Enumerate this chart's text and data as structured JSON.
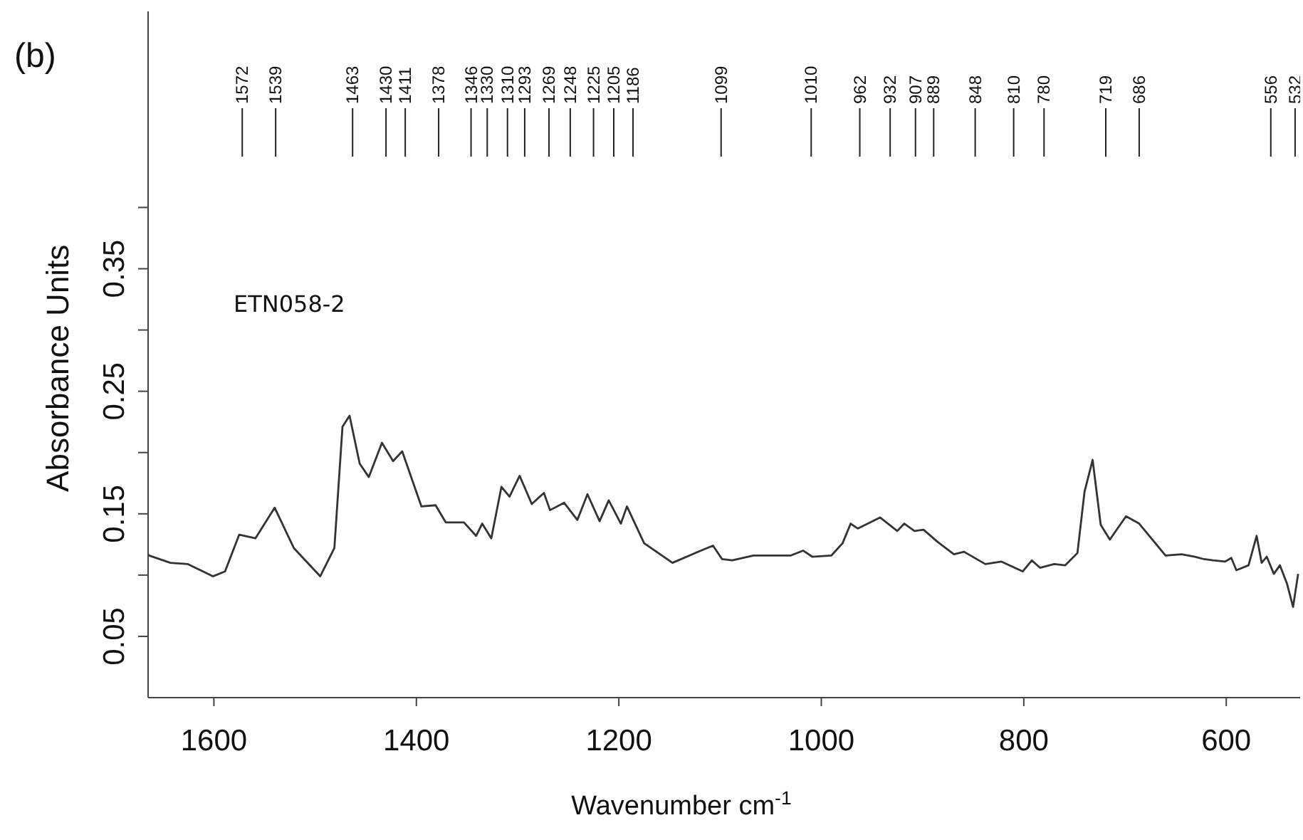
{
  "chart_data": {
    "type": "line",
    "title": "(b)",
    "xlabel": "Wavenumber cm$^{-1}$",
    "ylabel": "Absorbance Units",
    "x": [
      1665,
      1664,
      1643,
      1626,
      1601,
      1589,
      1575,
      1559,
      1540,
      1521,
      1495,
      1481,
      1473,
      1466,
      1456,
      1447,
      1434,
      1423,
      1414,
      1395,
      1381,
      1371,
      1353,
      1341,
      1335,
      1326,
      1316,
      1308,
      1298,
      1286,
      1274,
      1268,
      1254,
      1241,
      1231,
      1219,
      1210,
      1198,
      1192,
      1175,
      1147,
      1119,
      1107,
      1098,
      1088,
      1067,
      1030,
      1018,
      1009,
      990,
      979,
      971,
      964,
      942,
      925,
      918,
      908,
      899,
      885,
      869,
      859,
      838,
      822,
      801,
      792,
      784,
      770,
      759,
      747,
      740,
      732,
      724,
      715,
      699,
      686,
      660,
      644,
      631,
      622,
      613,
      601,
      595,
      590,
      578,
      570,
      565,
      560,
      553,
      547,
      540,
      534,
      529
    ],
    "series": [
      {
        "color": "#333333",
        "values": [
          0.117,
          0.116,
          0.11,
          0.109,
          0.099,
          0.103,
          0.133,
          0.13,
          0.155,
          0.122,
          0.099,
          0.122,
          0.221,
          0.23,
          0.191,
          0.18,
          0.208,
          0.193,
          0.201,
          0.156,
          0.157,
          0.143,
          0.143,
          0.132,
          0.142,
          0.13,
          0.172,
          0.164,
          0.181,
          0.158,
          0.167,
          0.153,
          0.159,
          0.145,
          0.166,
          0.144,
          0.161,
          0.142,
          0.156,
          0.126,
          0.11,
          0.12,
          0.124,
          0.113,
          0.112,
          0.116,
          0.116,
          0.12,
          0.115,
          0.116,
          0.126,
          0.142,
          0.138,
          0.147,
          0.136,
          0.142,
          0.136,
          0.137,
          0.127,
          0.117,
          0.119,
          0.109,
          0.111,
          0.103,
          0.112,
          0.106,
          0.109,
          0.108,
          0.118,
          0.168,
          0.194,
          0.141,
          0.129,
          0.148,
          0.142,
          0.116,
          0.117,
          0.115,
          0.113,
          0.112,
          0.111,
          0.114,
          0.104,
          0.108,
          0.132,
          0.11,
          0.115,
          0.101,
          0.108,
          0.093,
          0.074,
          0.101
        ]
      }
    ],
    "xlim": [
      1665,
      527
    ],
    "xticks": [
      1600,
      1400,
      1200,
      1000,
      800,
      600
    ],
    "ylim": [
      0,
      0.56
    ],
    "yticks": [
      {
        "value": 0.05,
        "label": "0.05"
      },
      {
        "value": 0.1,
        "label": null
      },
      {
        "value": 0.15,
        "label": "0.15"
      },
      {
        "value": 0.2,
        "label": null
      },
      {
        "value": 0.25,
        "label": "0.25"
      },
      {
        "value": 0.3,
        "label": null
      },
      {
        "value": 0.35,
        "label": "0.35"
      },
      {
        "value": 0.4,
        "label": null
      }
    ],
    "grid": false,
    "legend": false,
    "marker": "none",
    "line_style": "solid",
    "annotations": [
      "ETN058-2"
    ],
    "ref_lines": [
      {
        "axis": "x",
        "value": 1572,
        "label": "1572"
      },
      {
        "axis": "x",
        "value": 1539,
        "label": "1539"
      },
      {
        "axis": "x",
        "value": 1463,
        "label": "1463"
      },
      {
        "axis": "x",
        "value": 1430,
        "label": "1430"
      },
      {
        "axis": "x",
        "value": 1411,
        "label": "1411"
      },
      {
        "axis": "x",
        "value": 1378,
        "label": "1378"
      },
      {
        "axis": "x",
        "value": 1346,
        "label": "1346"
      },
      {
        "axis": "x",
        "value": 1330,
        "label": "1330"
      },
      {
        "axis": "x",
        "value": 1310,
        "label": "1310"
      },
      {
        "axis": "x",
        "value": 1293,
        "label": "1293"
      },
      {
        "axis": "x",
        "value": 1269,
        "label": "1269"
      },
      {
        "axis": "x",
        "value": 1248,
        "label": "1248"
      },
      {
        "axis": "x",
        "value": 1225,
        "label": "1225"
      },
      {
        "axis": "x",
        "value": 1205,
        "label": "1205"
      },
      {
        "axis": "x",
        "value": 1186,
        "label": "1186"
      },
      {
        "axis": "x",
        "value": 1099,
        "label": "1099"
      },
      {
        "axis": "x",
        "value": 1010,
        "label": "1010"
      },
      {
        "axis": "x",
        "value": 962,
        "label": "962"
      },
      {
        "axis": "x",
        "value": 932,
        "label": "932"
      },
      {
        "axis": "x",
        "value": 907,
        "label": "907"
      },
      {
        "axis": "x",
        "value": 889,
        "label": "889"
      },
      {
        "axis": "x",
        "value": 848,
        "label": "848"
      },
      {
        "axis": "x",
        "value": 810,
        "label": "810"
      },
      {
        "axis": "x",
        "value": 780,
        "label": "780"
      },
      {
        "axis": "x",
        "value": 719,
        "label": "719"
      },
      {
        "axis": "x",
        "value": 686,
        "label": "686"
      },
      {
        "axis": "x",
        "value": 556,
        "label": "556"
      },
      {
        "axis": "x",
        "value": 532,
        "label": "532"
      }
    ]
  }
}
